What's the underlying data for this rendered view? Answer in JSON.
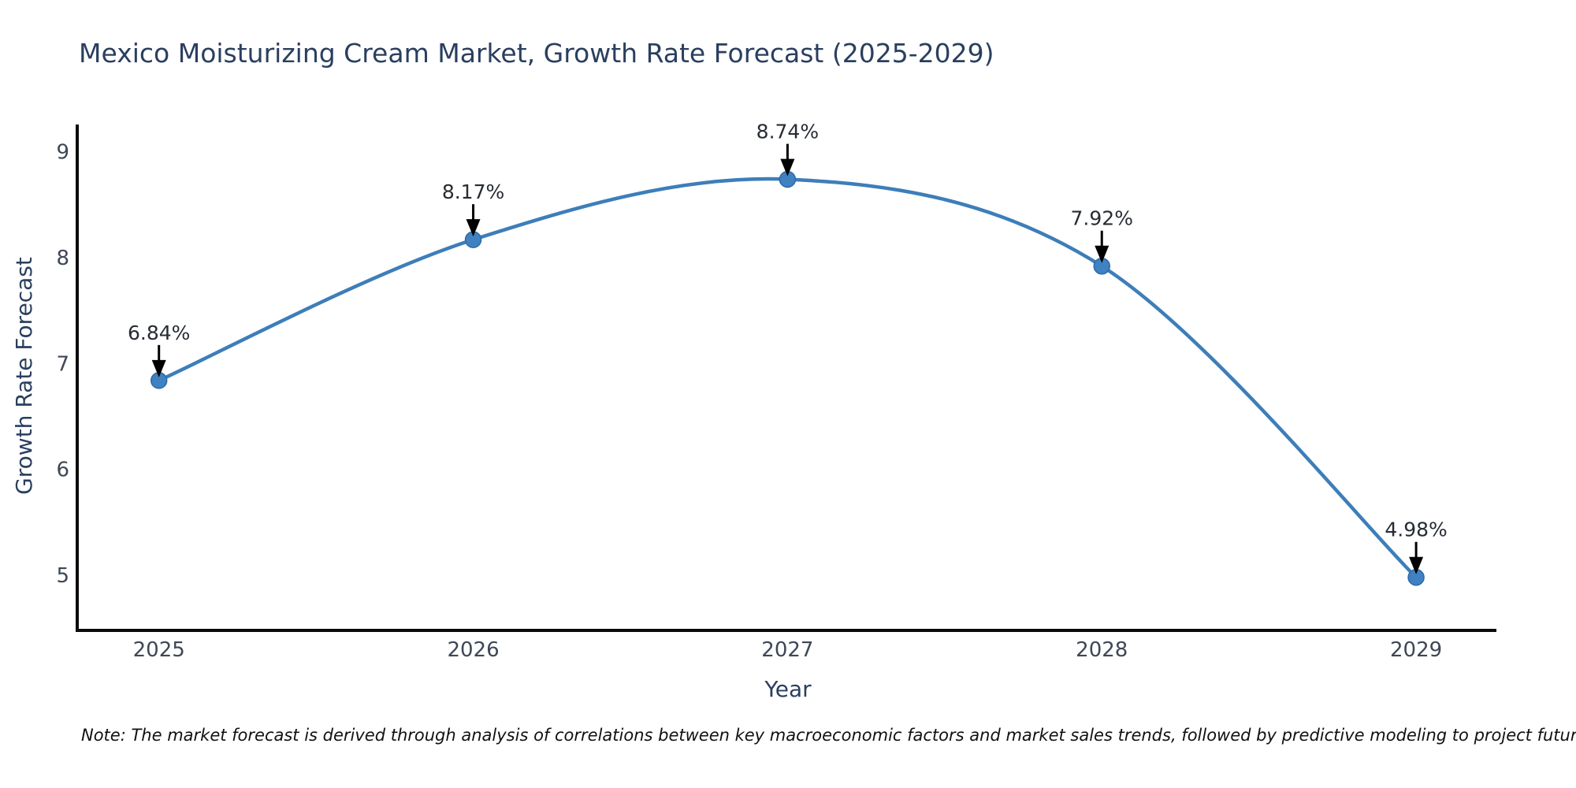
{
  "chart_data": {
    "type": "line",
    "title": "Mexico Moisturizing Cream Market, Growth Rate Forecast (2025-2029)",
    "xlabel": "Year",
    "ylabel": "Growth Rate Forecast",
    "x": [
      2025,
      2026,
      2027,
      2028,
      2029
    ],
    "x_tick_labels": [
      "2025",
      "2026",
      "2027",
      "2028",
      "2029"
    ],
    "series": [
      {
        "name": "Growth Rate Forecast",
        "values": [
          6.84,
          8.17,
          8.74,
          7.92,
          4.98
        ]
      }
    ],
    "point_labels": [
      "6.84%",
      "8.17%",
      "8.74%",
      "7.92%",
      "4.98%"
    ],
    "y_ticks": [
      5,
      6,
      7,
      8,
      9
    ],
    "ylim": [
      4.479,
      9.243
    ],
    "xlim": [
      2024.74,
      2029.253
    ],
    "grid": false,
    "legend": "none",
    "annotation_style": "black-down-arrow",
    "note": "Note: The market forecast is derived through analysis of correlations between key macroeconomic factors and market sales trends, followed by predictive modeling to project future sales.",
    "colors": {
      "line": "#3d7eb9",
      "marker": "#3f81c1",
      "marker_edge": "#2e6ba6",
      "axis": "#0a0a0a",
      "title_text": "#2a3f5f",
      "tick_text": "#3e4756",
      "annotation_text": "#272c34",
      "arrow": "#000000",
      "note_text": "#111111",
      "background": "#ffffff"
    }
  }
}
